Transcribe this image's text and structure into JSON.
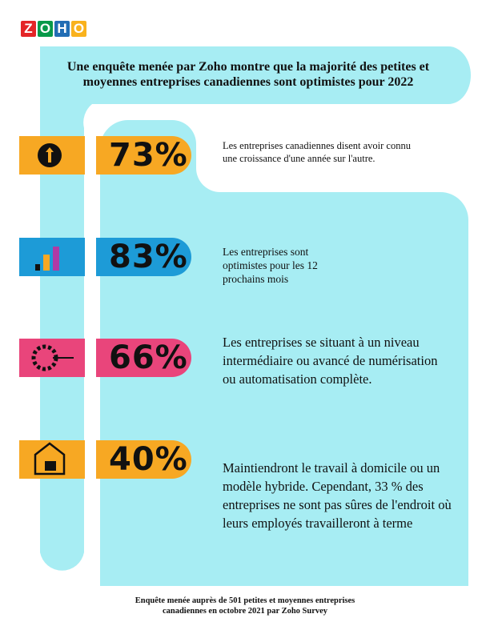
{
  "logo": {
    "letters": [
      "Z",
      "O",
      "H",
      "O"
    ]
  },
  "header": {
    "title_lines": [
      "Une enquête menée par Zoho montre que la majorité des petites et",
      "moyennes entreprises canadiennes sont optimistes pour 2022"
    ]
  },
  "stats": [
    {
      "value": "73%",
      "description": "Les entreprises canadiennes disent avoir connu une croissance d'une année sur l'autre."
    },
    {
      "value": "83%",
      "description": "Les entreprises sont optimistes pour les 12 prochains mois"
    },
    {
      "value": "66%",
      "description": "Les entreprises se situant à un niveau intermédiaire ou avancé de numérisation ou automatisation complète."
    },
    {
      "value": "40%",
      "description": "Maintiendront le travail à domicile ou un modèle hybride. Cependant, 33 % des entreprises ne sont pas sûres de l'endroit où leurs employés travailleront à terme"
    }
  ],
  "footer": {
    "lines": [
      "Enquête menée auprès de 501 petites et moyennes entreprises",
      "canadiennes en octobre 2021 par Zoho Survey"
    ]
  }
}
